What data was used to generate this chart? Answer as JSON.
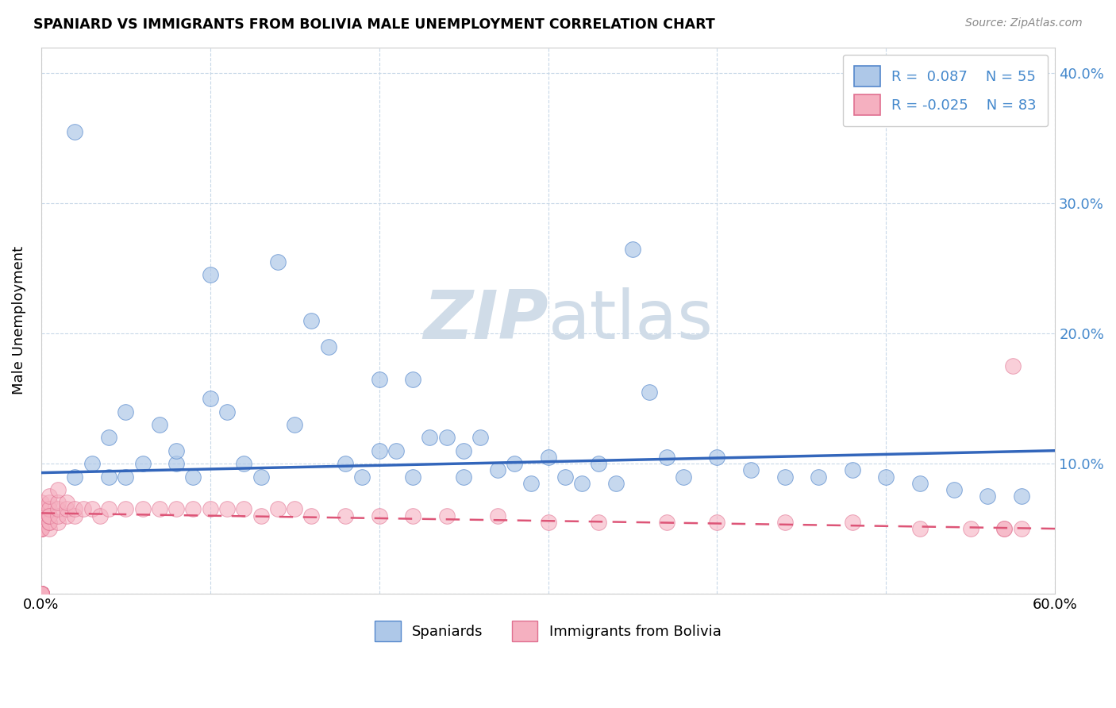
{
  "title": "SPANIARD VS IMMIGRANTS FROM BOLIVIA MALE UNEMPLOYMENT CORRELATION CHART",
  "source": "Source: ZipAtlas.com",
  "ylabel": "Male Unemployment",
  "xlim": [
    0.0,
    0.6
  ],
  "ylim": [
    0.0,
    0.42
  ],
  "spaniards_R": 0.087,
  "spaniards_N": 55,
  "bolivia_R": -0.025,
  "bolivia_N": 83,
  "blue_fill": "#aec8e8",
  "blue_edge": "#5588cc",
  "pink_fill": "#f5b0c0",
  "pink_edge": "#e07090",
  "blue_line": "#3366bb",
  "pink_line": "#dd5577",
  "watermark_color": "#d0dce8",
  "legend_spaniards": "Spaniards",
  "legend_bolivia": "Immigrants from Bolivia",
  "spaniards_x": [
    0.02,
    0.02,
    0.03,
    0.04,
    0.04,
    0.05,
    0.05,
    0.06,
    0.07,
    0.08,
    0.08,
    0.09,
    0.1,
    0.1,
    0.11,
    0.12,
    0.13,
    0.14,
    0.15,
    0.16,
    0.17,
    0.18,
    0.19,
    0.2,
    0.2,
    0.21,
    0.22,
    0.22,
    0.23,
    0.24,
    0.25,
    0.25,
    0.26,
    0.27,
    0.28,
    0.29,
    0.3,
    0.31,
    0.32,
    0.33,
    0.34,
    0.35,
    0.36,
    0.37,
    0.38,
    0.4,
    0.42,
    0.44,
    0.46,
    0.48,
    0.5,
    0.52,
    0.54,
    0.56,
    0.58
  ],
  "spaniards_y": [
    0.355,
    0.09,
    0.1,
    0.12,
    0.09,
    0.14,
    0.09,
    0.1,
    0.13,
    0.1,
    0.11,
    0.09,
    0.15,
    0.245,
    0.14,
    0.1,
    0.09,
    0.255,
    0.13,
    0.21,
    0.19,
    0.1,
    0.09,
    0.165,
    0.11,
    0.11,
    0.165,
    0.09,
    0.12,
    0.12,
    0.11,
    0.09,
    0.12,
    0.095,
    0.1,
    0.085,
    0.105,
    0.09,
    0.085,
    0.1,
    0.085,
    0.265,
    0.155,
    0.105,
    0.09,
    0.105,
    0.095,
    0.09,
    0.09,
    0.095,
    0.09,
    0.085,
    0.08,
    0.075,
    0.075
  ],
  "bolivia_x": [
    0.0,
    0.0,
    0.0,
    0.0,
    0.0,
    0.0,
    0.0,
    0.0,
    0.0,
    0.0,
    0.0,
    0.0,
    0.0,
    0.0,
    0.0,
    0.0,
    0.0,
    0.0,
    0.0,
    0.0,
    0.0,
    0.0,
    0.0,
    0.0,
    0.0,
    0.0,
    0.0,
    0.0,
    0.0,
    0.0,
    0.005,
    0.005,
    0.005,
    0.005,
    0.005,
    0.005,
    0.005,
    0.005,
    0.005,
    0.005,
    0.01,
    0.01,
    0.01,
    0.01,
    0.01,
    0.015,
    0.015,
    0.015,
    0.02,
    0.02,
    0.025,
    0.03,
    0.035,
    0.04,
    0.05,
    0.06,
    0.07,
    0.08,
    0.09,
    0.1,
    0.11,
    0.12,
    0.13,
    0.14,
    0.15,
    0.16,
    0.18,
    0.2,
    0.22,
    0.24,
    0.27,
    0.3,
    0.33,
    0.37,
    0.4,
    0.44,
    0.48,
    0.52,
    0.55,
    0.57,
    0.58,
    0.575,
    0.57
  ],
  "bolivia_y": [
    0.0,
    0.0,
    0.0,
    0.0,
    0.0,
    0.0,
    0.0,
    0.0,
    0.0,
    0.0,
    0.0,
    0.0,
    0.0,
    0.0,
    0.0,
    0.0,
    0.0,
    0.0,
    0.0,
    0.0,
    0.05,
    0.05,
    0.05,
    0.05,
    0.05,
    0.05,
    0.06,
    0.06,
    0.065,
    0.07,
    0.05,
    0.055,
    0.06,
    0.06,
    0.07,
    0.055,
    0.06,
    0.065,
    0.06,
    0.075,
    0.055,
    0.06,
    0.065,
    0.07,
    0.08,
    0.06,
    0.065,
    0.07,
    0.06,
    0.065,
    0.065,
    0.065,
    0.06,
    0.065,
    0.065,
    0.065,
    0.065,
    0.065,
    0.065,
    0.065,
    0.065,
    0.065,
    0.06,
    0.065,
    0.065,
    0.06,
    0.06,
    0.06,
    0.06,
    0.06,
    0.06,
    0.055,
    0.055,
    0.055,
    0.055,
    0.055,
    0.055,
    0.05,
    0.05,
    0.05,
    0.05,
    0.175,
    0.05
  ]
}
